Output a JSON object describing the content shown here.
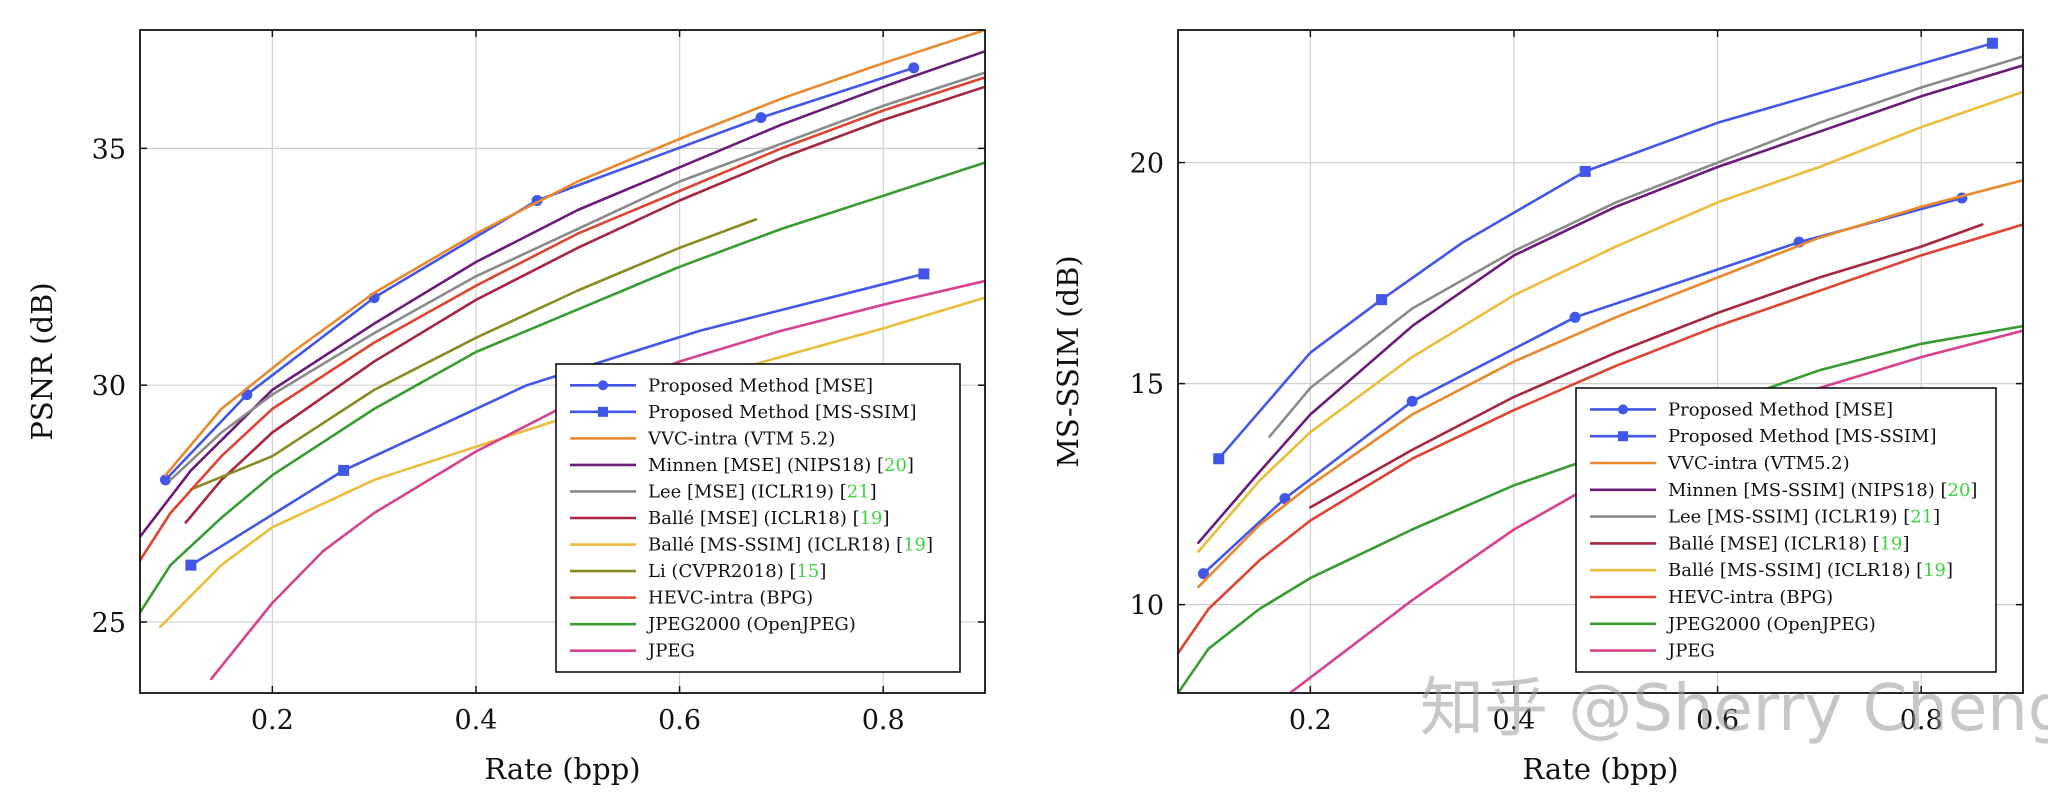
{
  "colors": {
    "proposed": "#4256e8",
    "vvc": "#e8892e",
    "minnen": "#6a1c78",
    "lee": "#8a8a8a",
    "balle_mse": "#a62740",
    "balle_msssim": "#ebbd3d",
    "li": "#8a8a24",
    "hevc": "#de4433",
    "jpeg2000": "#3a9a34",
    "jpeg": "#d6428c",
    "citation": "#3fd23f",
    "grid": "#d0d0d0"
  },
  "watermark": "知乎 @Sherry Cheng",
  "chart_data": [
    {
      "type": "line",
      "title": "",
      "xlabel": "Rate (bpp)",
      "ylabel": "PSNR (dB)",
      "xlim": [
        0.07,
        0.9
      ],
      "ylim": [
        23.5,
        37.5
      ],
      "xticks": [
        0.2,
        0.4,
        0.6,
        0.8
      ],
      "xtick_labels": [
        "0.2",
        "0.4",
        "0.6",
        "0.8"
      ],
      "yticks": [
        25,
        30,
        35
      ],
      "ytick_labels": [
        "25",
        "30",
        "35"
      ],
      "grid": true,
      "legend_position": "bottom-right",
      "series": [
        {
          "key": "proposed_mse",
          "name": "Proposed Method [MSE]",
          "color_key": "proposed",
          "marker": "circle",
          "x": [
            0.095,
            0.175,
            0.3,
            0.46,
            0.68,
            0.83
          ],
          "y": [
            28.0,
            29.8,
            31.85,
            33.9,
            35.65,
            36.7
          ],
          "marker_x": [
            0.095,
            0.175,
            0.3,
            0.46,
            0.68,
            0.83
          ],
          "marker_y": [
            28.0,
            29.8,
            31.85,
            33.9,
            35.65,
            36.7
          ]
        },
        {
          "key": "proposed_msssim",
          "name": "Proposed Method [MS-SSIM]",
          "color_key": "proposed",
          "marker": "square",
          "x": [
            0.12,
            0.27,
            0.45,
            0.62,
            0.84
          ],
          "y": [
            26.2,
            28.2,
            30.0,
            31.15,
            32.35
          ],
          "marker_x": [
            0.12,
            0.27,
            0.84
          ],
          "marker_y": [
            26.2,
            28.2,
            32.35
          ]
        },
        {
          "key": "vvc",
          "name": "VVC-intra (VTM 5.2)",
          "color_key": "vvc",
          "marker": "none",
          "x": [
            0.095,
            0.15,
            0.22,
            0.3,
            0.4,
            0.5,
            0.6,
            0.7,
            0.8,
            0.9
          ],
          "y": [
            28.1,
            29.5,
            30.7,
            31.95,
            33.2,
            34.3,
            35.2,
            36.05,
            36.8,
            37.5
          ]
        },
        {
          "key": "minnen",
          "name": "Minnen [MSE] (NIPS18)",
          "cite": "20",
          "color_key": "minnen",
          "marker": "none",
          "x": [
            0.07,
            0.12,
            0.2,
            0.3,
            0.4,
            0.5,
            0.6,
            0.7,
            0.8,
            0.9
          ],
          "y": [
            26.8,
            28.2,
            29.9,
            31.3,
            32.6,
            33.7,
            34.6,
            35.5,
            36.3,
            37.05
          ]
        },
        {
          "key": "lee",
          "name": "Lee [MSE] (ICLR19)",
          "cite": "21",
          "color_key": "lee",
          "marker": "none",
          "x": [
            0.1,
            0.15,
            0.2,
            0.3,
            0.4,
            0.5,
            0.6,
            0.7,
            0.8,
            0.9
          ],
          "y": [
            28.0,
            29.0,
            29.8,
            31.1,
            32.3,
            33.3,
            34.3,
            35.1,
            35.9,
            36.6
          ]
        },
        {
          "key": "balle_mse",
          "name": "Ballé [MSE] (ICLR18)",
          "cite": "19",
          "color_key": "balle_mse",
          "marker": "none",
          "x": [
            0.115,
            0.15,
            0.2,
            0.3,
            0.4,
            0.5,
            0.6,
            0.7,
            0.8,
            0.9
          ],
          "y": [
            27.1,
            28.0,
            29.0,
            30.5,
            31.8,
            32.9,
            33.9,
            34.8,
            35.6,
            36.3
          ]
        },
        {
          "key": "balle_msssim",
          "name": "Ballé [MS-SSIM] (ICLR18)",
          "cite": "19",
          "color_key": "balle_msssim",
          "marker": "none",
          "x": [
            0.09,
            0.15,
            0.2,
            0.3,
            0.4,
            0.5,
            0.6,
            0.7,
            0.8,
            0.9
          ],
          "y": [
            24.9,
            26.2,
            27.0,
            28.0,
            28.7,
            29.4,
            30.0,
            30.6,
            31.2,
            31.85
          ]
        },
        {
          "key": "li",
          "name": "Li (CVPR2018)",
          "cite": "15",
          "color_key": "li",
          "marker": "none",
          "x": [
            0.12,
            0.2,
            0.3,
            0.4,
            0.5,
            0.6,
            0.675
          ],
          "y": [
            27.8,
            28.5,
            29.9,
            31.0,
            32.0,
            32.9,
            33.5
          ]
        },
        {
          "key": "hevc",
          "name": "HEVC-intra (BPG)",
          "color_key": "hevc",
          "marker": "none",
          "x": [
            0.07,
            0.1,
            0.15,
            0.2,
            0.3,
            0.4,
            0.5,
            0.6,
            0.7,
            0.8,
            0.9
          ],
          "y": [
            26.3,
            27.3,
            28.5,
            29.5,
            30.9,
            32.1,
            33.2,
            34.1,
            35.0,
            35.8,
            36.5
          ]
        },
        {
          "key": "jpeg2000",
          "name": "JPEG2000 (OpenJPEG)",
          "color_key": "jpeg2000",
          "marker": "none",
          "x": [
            0.07,
            0.1,
            0.15,
            0.2,
            0.3,
            0.4,
            0.5,
            0.6,
            0.7,
            0.8,
            0.9
          ],
          "y": [
            25.2,
            26.2,
            27.2,
            28.1,
            29.5,
            30.7,
            31.6,
            32.5,
            33.3,
            34.0,
            34.7
          ]
        },
        {
          "key": "jpeg",
          "name": "JPEG",
          "color_key": "jpeg",
          "marker": "none",
          "x": [
            0.14,
            0.2,
            0.25,
            0.3,
            0.4,
            0.5,
            0.6,
            0.7,
            0.8,
            0.9
          ],
          "y": [
            23.8,
            25.4,
            26.5,
            27.3,
            28.6,
            29.7,
            30.5,
            31.15,
            31.7,
            32.2
          ]
        }
      ]
    },
    {
      "type": "line",
      "title": "",
      "xlabel": "Rate (bpp)",
      "ylabel": "MS-SSIM (dB)",
      "xlim": [
        0.07,
        0.9
      ],
      "ylim": [
        8,
        23
      ],
      "xticks": [
        0.2,
        0.4,
        0.6,
        0.8
      ],
      "xtick_labels": [
        "0.2",
        "0.4",
        "0.6",
        "0.8"
      ],
      "yticks": [
        10,
        15,
        20
      ],
      "ytick_labels": [
        "10",
        "15",
        "20"
      ],
      "grid": true,
      "legend_position": "bottom-right",
      "series": [
        {
          "key": "proposed_mse",
          "name": "Proposed Method [MSE]",
          "color_key": "proposed",
          "marker": "circle",
          "x": [
            0.095,
            0.175,
            0.3,
            0.46,
            0.68,
            0.84
          ],
          "y": [
            10.7,
            12.4,
            14.6,
            16.5,
            18.2,
            19.2
          ],
          "marker_x": [
            0.095,
            0.175,
            0.3,
            0.46,
            0.68,
            0.84
          ],
          "marker_y": [
            10.7,
            12.4,
            14.6,
            16.5,
            18.2,
            19.2
          ]
        },
        {
          "key": "proposed_msssim",
          "name": "Proposed Method [MS-SSIM]",
          "color_key": "proposed",
          "marker": "square",
          "x": [
            0.11,
            0.2,
            0.27,
            0.35,
            0.47,
            0.6,
            0.75,
            0.87
          ],
          "y": [
            13.3,
            15.7,
            16.9,
            18.2,
            19.8,
            20.9,
            21.9,
            22.7
          ],
          "marker_x": [
            0.11,
            0.27,
            0.47,
            0.87
          ],
          "marker_y": [
            13.3,
            16.9,
            19.8,
            22.7
          ]
        },
        {
          "key": "vvc",
          "name": "VVC-intra (VTM5.2)",
          "color_key": "vvc",
          "marker": "none",
          "x": [
            0.09,
            0.15,
            0.2,
            0.3,
            0.4,
            0.5,
            0.6,
            0.7,
            0.8,
            0.9
          ],
          "y": [
            10.4,
            11.8,
            12.7,
            14.3,
            15.5,
            16.5,
            17.4,
            18.3,
            19.0,
            19.6
          ]
        },
        {
          "key": "minnen",
          "name": "Minnen [MS-SSIM] (NIPS18)",
          "cite": "20",
          "color_key": "minnen",
          "marker": "none",
          "x": [
            0.09,
            0.15,
            0.2,
            0.3,
            0.4,
            0.5,
            0.6,
            0.7,
            0.8,
            0.9
          ],
          "y": [
            11.4,
            13.0,
            14.3,
            16.3,
            17.9,
            19.0,
            19.9,
            20.7,
            21.5,
            22.2
          ]
        },
        {
          "key": "lee",
          "name": "Lee [MS-SSIM] (ICLR19)",
          "cite": "21",
          "color_key": "lee",
          "marker": "none",
          "x": [
            0.16,
            0.2,
            0.3,
            0.4,
            0.5,
            0.6,
            0.7,
            0.8,
            0.9
          ],
          "y": [
            13.8,
            14.9,
            16.7,
            18.0,
            19.1,
            20.0,
            20.9,
            21.7,
            22.4
          ]
        },
        {
          "key": "balle_mse",
          "name": "Ballé [MSE] (ICLR18)",
          "cite": "19",
          "color_key": "balle_mse",
          "marker": "none",
          "x": [
            0.2,
            0.3,
            0.4,
            0.5,
            0.6,
            0.7,
            0.8,
            0.86
          ],
          "y": [
            12.2,
            13.5,
            14.7,
            15.7,
            16.6,
            17.4,
            18.1,
            18.6
          ]
        },
        {
          "key": "balle_msssim",
          "name": "Ballé [MS-SSIM] (ICLR18)",
          "cite": "19",
          "color_key": "balle_msssim",
          "marker": "none",
          "x": [
            0.09,
            0.15,
            0.2,
            0.3,
            0.4,
            0.5,
            0.6,
            0.7,
            0.8,
            0.9
          ],
          "y": [
            11.2,
            12.8,
            13.9,
            15.6,
            17.0,
            18.1,
            19.1,
            19.9,
            20.8,
            21.6
          ]
        },
        {
          "key": "hevc",
          "name": "HEVC-intra (BPG)",
          "color_key": "hevc",
          "marker": "none",
          "x": [
            0.07,
            0.1,
            0.15,
            0.2,
            0.3,
            0.4,
            0.5,
            0.6,
            0.7,
            0.8,
            0.9
          ],
          "y": [
            8.9,
            9.9,
            11.0,
            11.9,
            13.3,
            14.4,
            15.4,
            16.3,
            17.1,
            17.9,
            18.6
          ]
        },
        {
          "key": "jpeg2000",
          "name": "JPEG2000 (OpenJPEG)",
          "color_key": "jpeg2000",
          "marker": "none",
          "x": [
            0.07,
            0.1,
            0.15,
            0.2,
            0.3,
            0.4,
            0.5,
            0.6,
            0.7,
            0.8,
            0.9
          ],
          "y": [
            8.0,
            9.0,
            9.9,
            10.6,
            11.7,
            12.7,
            13.5,
            14.5,
            15.3,
            15.9,
            16.3
          ]
        },
        {
          "key": "jpeg",
          "name": "JPEG",
          "color_key": "jpeg",
          "marker": "none",
          "x": [
            0.18,
            0.3,
            0.4,
            0.5,
            0.6,
            0.7,
            0.8,
            0.9
          ],
          "y": [
            8.0,
            10.1,
            11.7,
            13.0,
            14.1,
            14.9,
            15.6,
            16.2
          ]
        }
      ]
    }
  ]
}
